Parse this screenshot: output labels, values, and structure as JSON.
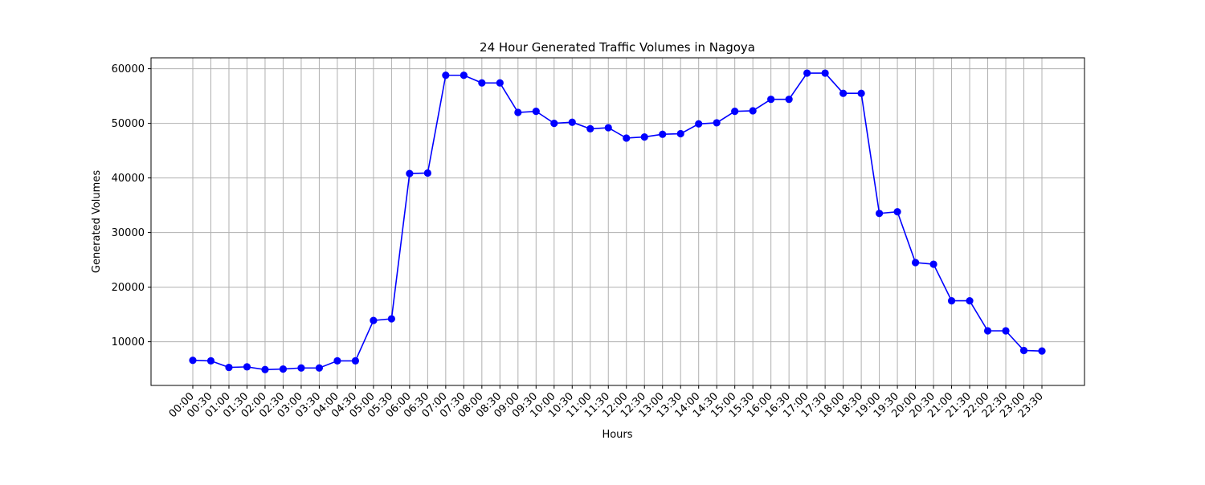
{
  "chart_data": {
    "type": "line",
    "title": "24 Hour Generated Traffic Volumes in Nagoya",
    "xlabel": "Hours",
    "ylabel": "Generated Volumes",
    "grid": true,
    "ylim": [
      2000,
      62000
    ],
    "yticks": [
      10000,
      20000,
      30000,
      40000,
      50000,
      60000
    ],
    "series_color": "#0000ff",
    "categories": [
      "00:00",
      "00:30",
      "01:00",
      "01:30",
      "02:00",
      "02:30",
      "03:00",
      "03:30",
      "04:00",
      "04:30",
      "05:00",
      "05:30",
      "06:00",
      "06:30",
      "07:00",
      "07:30",
      "08:00",
      "08:30",
      "09:00",
      "09:30",
      "10:00",
      "10:30",
      "11:00",
      "11:30",
      "12:00",
      "12:30",
      "13:00",
      "13:30",
      "14:00",
      "14:30",
      "15:00",
      "15:30",
      "16:00",
      "16:30",
      "17:00",
      "17:30",
      "18:00",
      "18:30",
      "19:00",
      "19:30",
      "20:00",
      "20:30",
      "21:00",
      "21:30",
      "22:00",
      "22:30",
      "23:00",
      "23:30"
    ],
    "values": [
      6600,
      6500,
      5300,
      5400,
      4900,
      5000,
      5200,
      5200,
      6500,
      6500,
      13900,
      14200,
      40800,
      40900,
      58800,
      58800,
      57400,
      57400,
      52000,
      52200,
      50000,
      50200,
      49000,
      49200,
      47300,
      47500,
      48000,
      48100,
      49900,
      50100,
      52200,
      52300,
      54400,
      54400,
      59200,
      59200,
      55500,
      55500,
      33500,
      33800,
      24500,
      24200,
      17500,
      17500,
      12000,
      12000,
      8400,
      8300
    ]
  }
}
